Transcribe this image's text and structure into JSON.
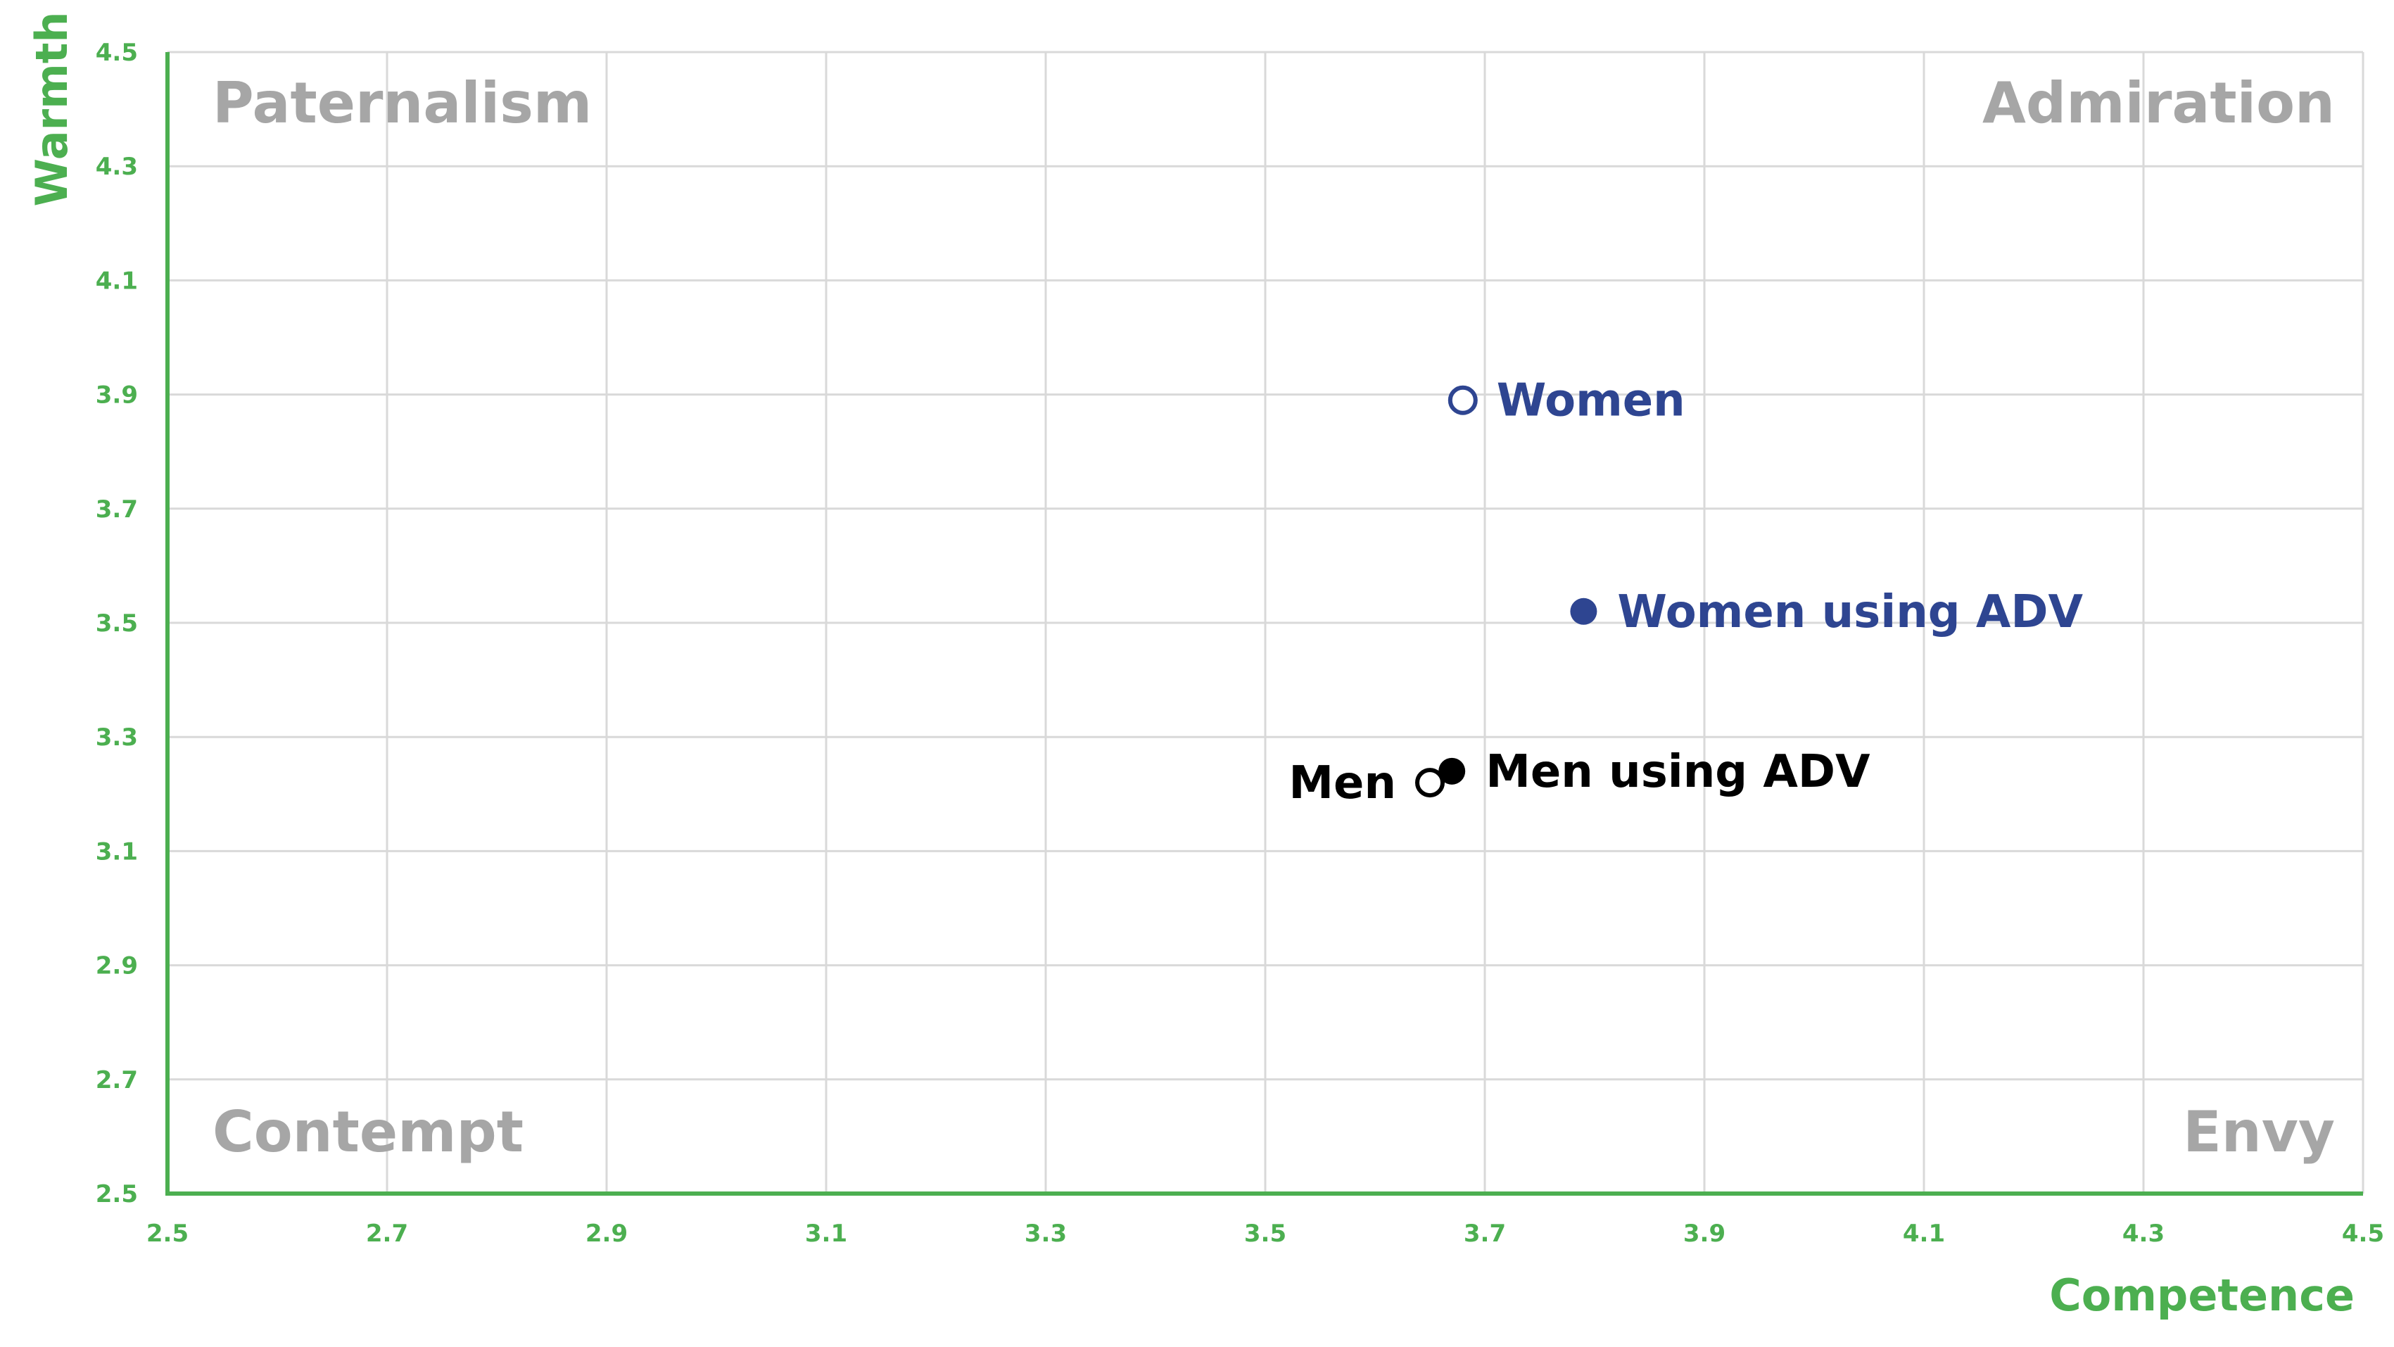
{
  "chart_data": {
    "type": "scatter",
    "title": "",
    "xlabel": "Competence",
    "ylabel": "Warmth",
    "xlim": [
      2.5,
      4.5
    ],
    "ylim": [
      2.5,
      4.5
    ],
    "xticks": [
      "2.5",
      "2.7",
      "2.9",
      "3.1",
      "3.3",
      "3.5",
      "3.7",
      "3.9",
      "4.1",
      "4.3",
      "4.5"
    ],
    "yticks": [
      "2.5",
      "2.7",
      "2.9",
      "3.1",
      "3.3",
      "3.5",
      "3.7",
      "3.9",
      "4.1",
      "4.3",
      "4.5"
    ],
    "grid": true,
    "legend": "none",
    "quadrant_labels": {
      "top_left": "Paternalism",
      "top_right": "Admiration",
      "bottom_left": "Contempt",
      "bottom_right": "Envy"
    },
    "points": [
      {
        "label": "Women",
        "x": 3.68,
        "y": 3.89,
        "marker": "open",
        "color": "#2e4591",
        "label_side": "right"
      },
      {
        "label": "Women using ADV",
        "x": 3.79,
        "y": 3.52,
        "marker": "filled",
        "color": "#2e4591",
        "label_side": "right"
      },
      {
        "label": "Men",
        "x": 3.65,
        "y": 3.22,
        "marker": "open",
        "color": "#000000",
        "label_side": "left"
      },
      {
        "label": "Men using ADV",
        "x": 3.67,
        "y": 3.24,
        "marker": "filled",
        "color": "#000000",
        "label_side": "right"
      }
    ]
  },
  "colors": {
    "axis": "#4caf50",
    "grid": "#d9d9d9",
    "quadrant_text": "#a6a6a6",
    "women": "#2e4591",
    "men": "#000000"
  }
}
